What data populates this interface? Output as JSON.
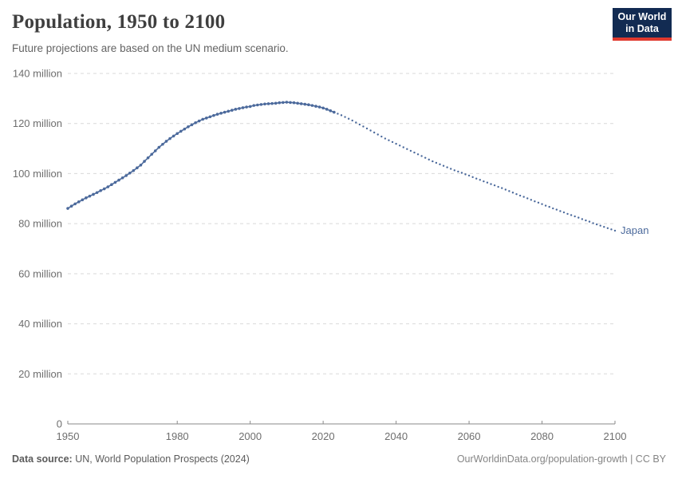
{
  "header": {
    "title": "Population, 1950 to 2100",
    "subtitle": "Future projections are based on the UN medium scenario.",
    "logo_line1": "Our World",
    "logo_line2": "in Data"
  },
  "footer": {
    "source_label": "Data source:",
    "source_text": " UN, World Population Prospects (2024)",
    "right_text": "OurWorldinData.org/population-growth | CC BY"
  },
  "colors": {
    "series_blue": "#4c6a9c",
    "grid": "#d9d9d9",
    "axis": "#8a8a8a",
    "tick_label": "#6e6e6e",
    "logo_bg": "#122b52",
    "logo_red": "#e0392e"
  },
  "chart_data": {
    "type": "line",
    "title": "Population, 1950 to 2100",
    "subtitle": "Future projections are based on the UN medium scenario.",
    "entity_label": "Japan",
    "xlabel": "",
    "ylabel": "",
    "y_unit": "million people",
    "xlim": [
      1950,
      2100
    ],
    "ylim": [
      0,
      140
    ],
    "grid": "horizontal dashed",
    "legend_position": "end-of-line label",
    "xticks": [
      1950,
      1980,
      2000,
      2020,
      2040,
      2060,
      2080,
      2100
    ],
    "yticks": [
      {
        "value": 0,
        "label": "0"
      },
      {
        "value": 20,
        "label": "20 million"
      },
      {
        "value": 40,
        "label": "40 million"
      },
      {
        "value": 60,
        "label": "60 million"
      },
      {
        "value": 80,
        "label": "80 million"
      },
      {
        "value": 100,
        "label": "100 million"
      },
      {
        "value": 120,
        "label": "120 million"
      },
      {
        "value": 140,
        "label": "140 million"
      }
    ],
    "series": [
      {
        "name": "Japan — estimates (1950–2023)",
        "style": "solid-with-markers",
        "color": "#4c6a9c",
        "points": [
          [
            1950,
            86.1
          ],
          [
            1951,
            87.0
          ],
          [
            1952,
            87.9
          ],
          [
            1953,
            88.7
          ],
          [
            1954,
            89.5
          ],
          [
            1955,
            90.3
          ],
          [
            1956,
            91.0
          ],
          [
            1957,
            91.7
          ],
          [
            1958,
            92.4
          ],
          [
            1959,
            93.2
          ],
          [
            1960,
            93.9
          ],
          [
            1961,
            94.7
          ],
          [
            1962,
            95.6
          ],
          [
            1963,
            96.5
          ],
          [
            1964,
            97.4
          ],
          [
            1965,
            98.3
          ],
          [
            1966,
            99.2
          ],
          [
            1967,
            100.2
          ],
          [
            1968,
            101.2
          ],
          [
            1969,
            102.3
          ],
          [
            1970,
            103.4
          ],
          [
            1971,
            104.9
          ],
          [
            1972,
            106.3
          ],
          [
            1973,
            107.7
          ],
          [
            1974,
            109.1
          ],
          [
            1975,
            110.5
          ],
          [
            1976,
            111.7
          ],
          [
            1977,
            112.9
          ],
          [
            1978,
            114.0
          ],
          [
            1979,
            115.0
          ],
          [
            1980,
            116.0
          ],
          [
            1981,
            116.9
          ],
          [
            1982,
            117.8
          ],
          [
            1983,
            118.7
          ],
          [
            1984,
            119.5
          ],
          [
            1985,
            120.3
          ],
          [
            1986,
            121.0
          ],
          [
            1987,
            121.7
          ],
          [
            1988,
            122.2
          ],
          [
            1989,
            122.7
          ],
          [
            1990,
            123.2
          ],
          [
            1991,
            123.7
          ],
          [
            1992,
            124.1
          ],
          [
            1993,
            124.5
          ],
          [
            1994,
            124.9
          ],
          [
            1995,
            125.3
          ],
          [
            1996,
            125.7
          ],
          [
            1997,
            126.0
          ],
          [
            1998,
            126.3
          ],
          [
            1999,
            126.6
          ],
          [
            2000,
            126.8
          ],
          [
            2001,
            127.2
          ],
          [
            2002,
            127.4
          ],
          [
            2003,
            127.6
          ],
          [
            2004,
            127.8
          ],
          [
            2005,
            127.9
          ],
          [
            2006,
            128.0
          ],
          [
            2007,
            128.1
          ],
          [
            2008,
            128.3
          ],
          [
            2009,
            128.4
          ],
          [
            2010,
            128.5
          ],
          [
            2011,
            128.4
          ],
          [
            2012,
            128.3
          ],
          [
            2013,
            128.1
          ],
          [
            2014,
            127.9
          ],
          [
            2015,
            127.7
          ],
          [
            2016,
            127.5
          ],
          [
            2017,
            127.2
          ],
          [
            2018,
            126.9
          ],
          [
            2019,
            126.6
          ],
          [
            2020,
            126.2
          ],
          [
            2021,
            125.7
          ],
          [
            2022,
            125.1
          ],
          [
            2023,
            124.5
          ]
        ]
      },
      {
        "name": "Japan — UN medium projection (2024–2100)",
        "style": "dotted",
        "color": "#4c6a9c",
        "points": [
          [
            2024,
            123.9
          ],
          [
            2025,
            123.3
          ],
          [
            2026,
            122.6
          ],
          [
            2027,
            121.9
          ],
          [
            2028,
            121.2
          ],
          [
            2029,
            120.4
          ],
          [
            2030,
            119.6
          ],
          [
            2031,
            118.8
          ],
          [
            2032,
            118.0
          ],
          [
            2033,
            117.2
          ],
          [
            2034,
            116.4
          ],
          [
            2035,
            115.6
          ],
          [
            2036,
            114.8
          ],
          [
            2037,
            114.0
          ],
          [
            2038,
            113.3
          ],
          [
            2039,
            112.6
          ],
          [
            2040,
            111.9
          ],
          [
            2041,
            111.2
          ],
          [
            2042,
            110.5
          ],
          [
            2043,
            109.8
          ],
          [
            2044,
            109.1
          ],
          [
            2045,
            108.4
          ],
          [
            2046,
            107.7
          ],
          [
            2047,
            107.0
          ],
          [
            2048,
            106.3
          ],
          [
            2049,
            105.6
          ],
          [
            2050,
            104.9
          ],
          [
            2051,
            104.3
          ],
          [
            2052,
            103.7
          ],
          [
            2053,
            103.1
          ],
          [
            2054,
            102.5
          ],
          [
            2055,
            101.9
          ],
          [
            2056,
            101.3
          ],
          [
            2057,
            100.8
          ],
          [
            2058,
            100.3
          ],
          [
            2059,
            99.7
          ],
          [
            2060,
            99.2
          ],
          [
            2061,
            98.6
          ],
          [
            2062,
            98.0
          ],
          [
            2063,
            97.5
          ],
          [
            2064,
            96.9
          ],
          [
            2065,
            96.4
          ],
          [
            2066,
            95.8
          ],
          [
            2067,
            95.3
          ],
          [
            2068,
            94.7
          ],
          [
            2069,
            94.2
          ],
          [
            2070,
            93.6
          ],
          [
            2071,
            93.0
          ],
          [
            2072,
            92.4
          ],
          [
            2073,
            91.8
          ],
          [
            2074,
            91.2
          ],
          [
            2075,
            90.7
          ],
          [
            2076,
            90.1
          ],
          [
            2077,
            89.5
          ],
          [
            2078,
            88.9
          ],
          [
            2079,
            88.4
          ],
          [
            2080,
            87.8
          ],
          [
            2081,
            87.2
          ],
          [
            2082,
            86.7
          ],
          [
            2083,
            86.1
          ],
          [
            2084,
            85.6
          ],
          [
            2085,
            85.0
          ],
          [
            2086,
            84.5
          ],
          [
            2087,
            83.9
          ],
          [
            2088,
            83.4
          ],
          [
            2089,
            82.9
          ],
          [
            2090,
            82.4
          ],
          [
            2091,
            81.8
          ],
          [
            2092,
            81.3
          ],
          [
            2093,
            80.8
          ],
          [
            2094,
            80.2
          ],
          [
            2095,
            79.7
          ],
          [
            2096,
            79.2
          ],
          [
            2097,
            78.7
          ],
          [
            2098,
            78.2
          ],
          [
            2099,
            77.7
          ],
          [
            2100,
            77.2
          ]
        ]
      }
    ]
  }
}
